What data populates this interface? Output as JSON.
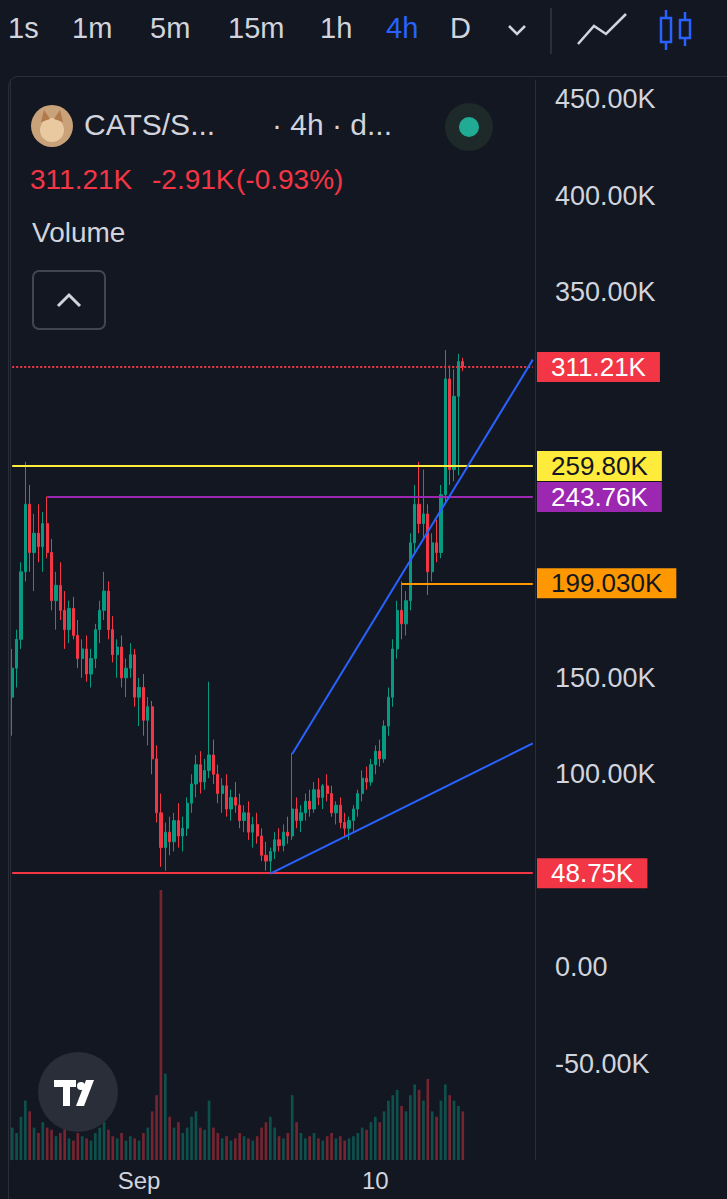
{
  "toolbar": {
    "intervals": [
      "1s",
      "1m",
      "5m",
      "15m",
      "1h",
      "4h",
      "D"
    ],
    "active": "4h"
  },
  "header": {
    "symbol": "CATS/S...",
    "details": "· 4h · d...",
    "last": "311.21K",
    "change": "-2.91K",
    "change_pct": "(-0.93%)",
    "indicator": "Volume"
  },
  "chart_data": {
    "type": "candlestick",
    "categories": [
      null,
      null,
      null,
      null,
      null,
      null,
      null,
      null,
      null,
      null,
      null,
      null,
      null,
      null,
      null,
      null,
      null,
      null,
      null,
      null,
      null,
      null,
      null,
      null,
      null,
      null,
      null,
      null,
      null,
      "Sep",
      null,
      null,
      null,
      null,
      null,
      null,
      null,
      null,
      null,
      null,
      null,
      null,
      null,
      null,
      null,
      null,
      null,
      null,
      null,
      null,
      null,
      null,
      null,
      null,
      null,
      null,
      null,
      null,
      null,
      null,
      null,
      null,
      null,
      null,
      null,
      null,
      null,
      null,
      null,
      null,
      null,
      null,
      null,
      null,
      null,
      null,
      null,
      null,
      null,
      null,
      null,
      null,
      null,
      "10",
      null,
      null,
      null,
      null,
      null,
      null,
      null,
      null,
      null,
      null,
      null,
      null,
      null,
      null,
      null,
      null,
      null,
      null,
      null,
      null,
      null,
      null,
      null,
      null,
      null,
      null,
      null,
      null,
      null,
      null,
      null,
      null,
      null,
      null,
      null,
      null
    ],
    "series": [
      {
        "name": "CATS/S...",
        "type": "candlestick",
        "colors": [
          "#089981",
          "#f23645"
        ],
        "values": [
          [
            140000,
            165000,
            120000,
            155000
          ],
          [
            155000,
            175000,
            145000,
            170000
          ],
          [
            170000,
            210000,
            165000,
            205000
          ],
          [
            205000,
            262000,
            200000,
            240000
          ],
          [
            240000,
            250000,
            205000,
            215000
          ],
          [
            215000,
            235000,
            195000,
            225000
          ],
          [
            225000,
            240000,
            210000,
            218000
          ],
          [
            218000,
            236000,
            205000,
            230000
          ],
          [
            230000,
            244000,
            212000,
            215000
          ],
          [
            215000,
            222000,
            185000,
            190000
          ],
          [
            190000,
            205000,
            175000,
            198000
          ],
          [
            198000,
            210000,
            180000,
            185000
          ],
          [
            185000,
            195000,
            165000,
            175000
          ],
          [
            175000,
            190000,
            168000,
            186000
          ],
          [
            186000,
            192000,
            170000,
            172000
          ],
          [
            172000,
            180000,
            155000,
            160000
          ],
          [
            160000,
            170000,
            150000,
            165000
          ],
          [
            165000,
            172000,
            148000,
            152000
          ],
          [
            152000,
            165000,
            145000,
            160000
          ],
          [
            160000,
            178000,
            155000,
            175000
          ],
          [
            175000,
            190000,
            168000,
            185000
          ],
          [
            185000,
            205000,
            180000,
            195000
          ],
          [
            195000,
            200000,
            170000,
            175000
          ],
          [
            175000,
            182000,
            158000,
            162000
          ],
          [
            162000,
            170000,
            150000,
            166000
          ],
          [
            166000,
            172000,
            145000,
            150000
          ],
          [
            150000,
            160000,
            140000,
            155000
          ],
          [
            155000,
            168000,
            150000,
            162000
          ],
          [
            162000,
            165000,
            135000,
            140000
          ],
          [
            140000,
            150000,
            125000,
            145000
          ],
          [
            145000,
            152000,
            120000,
            128000
          ],
          [
            128000,
            140000,
            115000,
            135000
          ],
          [
            135000,
            138000,
            100000,
            108000
          ],
          [
            108000,
            115000,
            75000,
            80000
          ],
          [
            80000,
            90000,
            52000,
            62000
          ],
          [
            62000,
            75000,
            50000,
            70000
          ],
          [
            70000,
            78000,
            58000,
            65000
          ],
          [
            65000,
            80000,
            60000,
            76000
          ],
          [
            76000,
            85000,
            62000,
            68000
          ],
          [
            68000,
            78000,
            60000,
            72000
          ],
          [
            72000,
            88000,
            68000,
            85000
          ],
          [
            85000,
            100000,
            80000,
            95000
          ],
          [
            95000,
            110000,
            88000,
            105000
          ],
          [
            105000,
            112000,
            90000,
            96000
          ],
          [
            96000,
            108000,
            92000,
            102000
          ],
          [
            102000,
            148000,
            98000,
            110000
          ],
          [
            110000,
            118000,
            95000,
            100000
          ],
          [
            100000,
            105000,
            85000,
            90000
          ],
          [
            90000,
            98000,
            80000,
            94000
          ],
          [
            94000,
            100000,
            78000,
            82000
          ],
          [
            82000,
            92000,
            76000,
            88000
          ],
          [
            88000,
            96000,
            80000,
            84000
          ],
          [
            84000,
            90000,
            72000,
            76000
          ],
          [
            76000,
            84000,
            70000,
            80000
          ],
          [
            80000,
            86000,
            66000,
            70000
          ],
          [
            70000,
            78000,
            62000,
            74000
          ],
          [
            74000,
            80000,
            64000,
            68000
          ],
          [
            68000,
            72000,
            55000,
            58000
          ],
          [
            58000,
            65000,
            50000,
            55000
          ],
          [
            55000,
            62000,
            48750,
            60000
          ],
          [
            60000,
            70000,
            56000,
            66000
          ],
          [
            66000,
            72000,
            60000,
            63000
          ],
          [
            63000,
            74000,
            60000,
            70000
          ],
          [
            70000,
            78000,
            64000,
            68000
          ],
          [
            68000,
            111000,
            66000,
            82000
          ],
          [
            82000,
            88000,
            72000,
            76000
          ],
          [
            76000,
            84000,
            70000,
            80000
          ],
          [
            80000,
            90000,
            76000,
            86000
          ],
          [
            86000,
            92000,
            78000,
            82000
          ],
          [
            82000,
            96000,
            80000,
            92000
          ],
          [
            92000,
            98000,
            84000,
            88000
          ],
          [
            88000,
            95000,
            82000,
            94000
          ],
          [
            94000,
            100000,
            86000,
            90000
          ],
          [
            90000,
            94000,
            78000,
            80000
          ],
          [
            80000,
            86000,
            74000,
            84000
          ],
          [
            84000,
            88000,
            72000,
            75000
          ],
          [
            75000,
            80000,
            68000,
            72000
          ],
          [
            72000,
            78000,
            66000,
            76000
          ],
          [
            76000,
            84000,
            70000,
            82000
          ],
          [
            82000,
            92000,
            78000,
            90000
          ],
          [
            90000,
            102000,
            86000,
            98000
          ],
          [
            98000,
            104000,
            92000,
            96000
          ],
          [
            96000,
            108000,
            94000,
            105000
          ],
          [
            105000,
            115000,
            100000,
            112000
          ],
          [
            112000,
            118000,
            104000,
            108000
          ],
          [
            108000,
            128000,
            106000,
            125000
          ],
          [
            125000,
            145000,
            120000,
            140000
          ],
          [
            140000,
            170000,
            135000,
            165000
          ],
          [
            165000,
            190000,
            160000,
            185000
          ],
          [
            185000,
            200000,
            170000,
            178000
          ],
          [
            178000,
            195000,
            172000,
            190000
          ],
          [
            190000,
            225000,
            185000,
            220000
          ],
          [
            220000,
            250000,
            215000,
            240000
          ],
          [
            240000,
            262000,
            225000,
            230000
          ],
          [
            230000,
            258000,
            222000,
            235000
          ],
          [
            235000,
            240000,
            193000,
            205000
          ],
          [
            205000,
            225000,
            200000,
            220000
          ],
          [
            220000,
            232000,
            210000,
            215000
          ],
          [
            215000,
            250000,
            212000,
            245000
          ],
          [
            245000,
            320000,
            240000,
            305000
          ],
          [
            305000,
            312000,
            250000,
            258000
          ],
          [
            258000,
            310000,
            252000,
            296000
          ],
          [
            296000,
            318000,
            255000,
            314000
          ],
          [
            314000,
            316000,
            309000,
            311210
          ],
          null,
          null,
          null,
          null,
          null,
          null,
          null,
          null,
          null,
          null,
          null,
          null,
          null,
          null,
          null,
          null
        ]
      },
      {
        "name": "Volume",
        "type": "bar",
        "axis": "y2",
        "values": [
          30,
          25,
          40,
          55,
          45,
          30,
          25,
          35,
          30,
          28,
          22,
          25,
          30,
          20,
          18,
          25,
          22,
          20,
          18,
          25,
          30,
          35,
          28,
          22,
          20,
          25,
          18,
          22,
          20,
          18,
          25,
          30,
          45,
          60,
          250,
          80,
          40,
          30,
          35,
          25,
          30,
          40,
          45,
          30,
          28,
          55,
          30,
          25,
          20,
          22,
          18,
          20,
          25,
          22,
          20,
          18,
          22,
          30,
          35,
          40,
          30,
          22,
          20,
          25,
          60,
          35,
          25,
          20,
          22,
          25,
          20,
          18,
          22,
          25,
          20,
          22,
          18,
          20,
          22,
          25,
          30,
          28,
          35,
          40,
          35,
          45,
          55,
          60,
          65,
          50,
          45,
          60,
          70,
          65,
          55,
          75,
          45,
          40,
          55,
          70,
          60,
          55,
          50,
          45,
          null,
          null,
          null,
          null,
          null,
          null,
          null,
          null,
          null,
          null,
          null,
          null,
          null,
          null,
          null,
          null
        ]
      }
    ],
    "ylim": [
      -100000,
      460000
    ],
    "yticks": [
      {
        "value": -50000,
        "label": "-50.00K"
      },
      {
        "value": 0,
        "label": "0.00"
      },
      {
        "value": 100000,
        "label": "100.00K"
      },
      {
        "value": 150000,
        "label": "150.00K"
      },
      {
        "value": 350000,
        "label": "350.00K"
      },
      {
        "value": 400000,
        "label": "400.00K"
      },
      {
        "value": 450000,
        "label": "450.00K"
      }
    ],
    "y2lim": [
      0,
      1000
    ],
    "levels": [
      {
        "value": 311210,
        "label": "311.21K",
        "color": "#f23645",
        "from": 0,
        "line_style": "dotted"
      },
      {
        "value": 259800,
        "label": "259.80K",
        "color": "#ffeb3b",
        "from": 0,
        "line_style": "solid"
      },
      {
        "value": 243760,
        "label": "243.76K",
        "color": "#9c27b0",
        "from": 8,
        "line_style": "solid"
      },
      {
        "value": 199030,
        "label": "199.030K",
        "color": "#ff9800",
        "from": 89,
        "line_style": "solid"
      },
      {
        "value": 48750,
        "label": "48.75K",
        "color": "#f23645",
        "from": 0,
        "line_style": "solid"
      }
    ],
    "trend_lines": [
      {
        "points": [
          [
            64,
            110500
          ],
          [
            119,
            315000
          ]
        ],
        "color": "#2962ff"
      },
      {
        "points": [
          [
            59,
            48500
          ],
          [
            119,
            116000
          ]
        ],
        "color": "#2962ff"
      }
    ],
    "grid": false,
    "tick_labels": "y"
  }
}
